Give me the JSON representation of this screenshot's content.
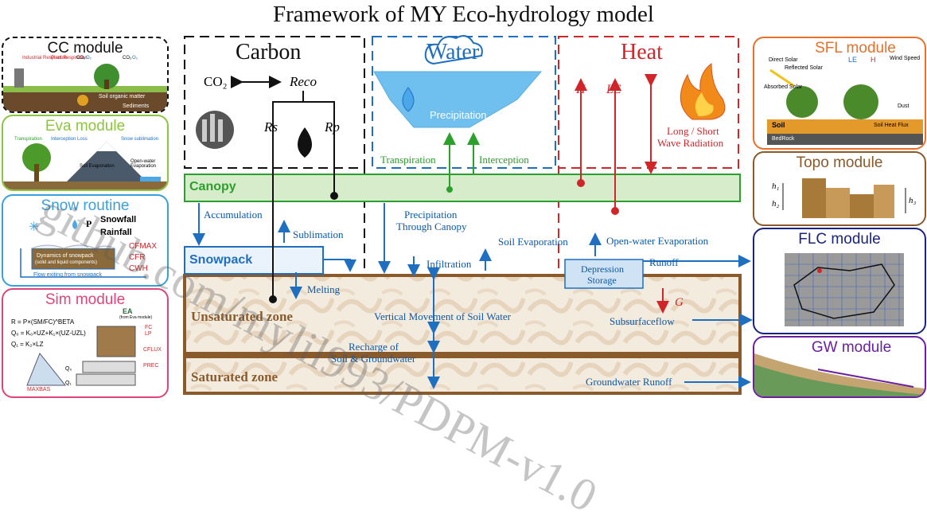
{
  "title": "Framework of MY Eco-hydrology model",
  "columns": {
    "carbon": "Carbon",
    "water": "Water",
    "heat": "Heat"
  },
  "carbon": {
    "co2": "CO₂",
    "reco": "Reco",
    "rs": "Rs",
    "rp": "Rp"
  },
  "water": {
    "precipitation": "Precipitation",
    "transpiration": "Transpiration",
    "interception": "Interception",
    "accumulation": "Accumulation",
    "sublimation": "Sublimation",
    "precip_through_canopy_1": "Precipitation",
    "precip_through_canopy_2": "Through Canopy",
    "infiltration": "Infiltration",
    "soil_evaporation": "Soil Evaporation",
    "open_water_evaporation": "Open-water Evaporation",
    "runoff": "Runoff",
    "melting": "Melting",
    "vertical_movement": "Vertical Movement of Soil Water",
    "subsurfaceflow": "Subsurfaceflow",
    "recharge_1": "Recharge of",
    "recharge_2": "Soil & Groundwater",
    "groundwater_runoff": "Groundwater Runoff",
    "depression_1": "Depression",
    "depression_2": "Storage"
  },
  "heat": {
    "h": "H",
    "le": "LE",
    "radiation_1": "Long / Short",
    "radiation_2": "Wave Radiation",
    "g": "G"
  },
  "layers": {
    "canopy": "Canopy",
    "snowpack": "Snowpack",
    "unsaturated": "Unsaturated zone",
    "saturated": "Saturated zone"
  },
  "modules": {
    "cc": {
      "title": "CC module",
      "labels": [
        "Industrial Respiration",
        "Plant Respiration",
        "CO₂",
        "O₂",
        "CO₂",
        "O₂",
        "Soil organic matter",
        "Sediments"
      ]
    },
    "eva": {
      "title": "Eva module",
      "labels": [
        "Transpiration",
        "Interception Loss",
        "Snow sublimation",
        "Soil Evaporation",
        "Open-water Evaporation"
      ]
    },
    "snow": {
      "title": "Snow routine",
      "p": "P",
      "snowfall": "Snowfall",
      "rainfall": "Rainfall",
      "cfmax": "CFMAX",
      "cfr": "CFR",
      "cwh": "CWH",
      "dynamics_1": "Dynamics of snowpack",
      "dynamics_2": "(solid and liquid components)",
      "flow": "Flow exiting from snowpack"
    },
    "sim": {
      "title": "Sim module",
      "eq1": "R = P×(SM/FC)^BETA",
      "eq2": "Q₀ = K₀×UZ+K₁×(UZ-UZL)",
      "eq3": "Q₁ = K₂×LZ",
      "ea": "EA",
      "ea_note": "(from Eva module)",
      "fc": "FC",
      "lp": "LP",
      "cflux": "CFLUX",
      "prec": "PREC",
      "maxbas": "MAXBAS",
      "q0": "Q₀",
      "q1": "Q₁"
    },
    "sfl": {
      "title": "SFL module",
      "labels": [
        "Direct Solar",
        "Reflected Solar",
        "Absorbed Solar",
        "LE",
        "H",
        "Wind Speed",
        "Dust",
        "Soil",
        "Soil Heat Flux",
        "BedRock"
      ]
    },
    "topo": {
      "title": "Topo module",
      "h1": "h₁",
      "h2": "h₂",
      "h3": "h₃"
    },
    "flc": {
      "title": "FLC module"
    },
    "gw": {
      "title": "GW module"
    }
  },
  "watermark": "github.com/mylil993/PDPM-v1.0",
  "colors": {
    "carbon": "#111111",
    "water": "#1f6fc0",
    "heat": "#d0262a",
    "green": "#2ca02c",
    "soil": "#8a5a2b",
    "canopy_fill": "#cfeac4"
  }
}
